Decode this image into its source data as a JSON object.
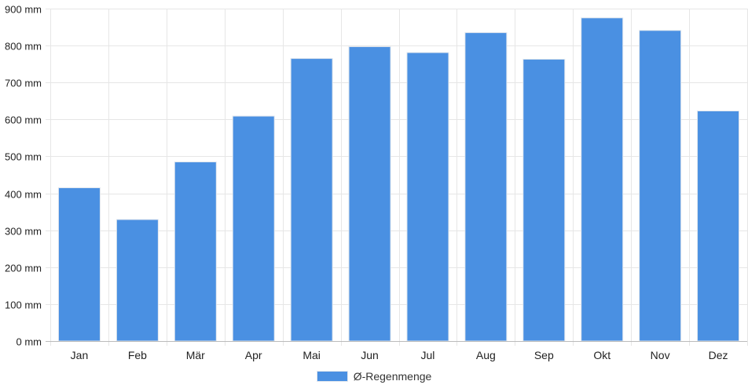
{
  "chart_data": {
    "type": "bar",
    "categories": [
      "Jan",
      "Feb",
      "Mär",
      "Apr",
      "Mai",
      "Jun",
      "Jul",
      "Aug",
      "Sep",
      "Okt",
      "Nov",
      "Dez"
    ],
    "series": [
      {
        "name": "Ø-Regenmenge",
        "values": [
          415,
          329,
          485,
          609,
          765,
          797,
          781,
          835,
          763,
          875,
          841,
          623
        ]
      }
    ],
    "ylim": [
      0,
      900
    ],
    "yticks": [
      0,
      100,
      200,
      300,
      400,
      500,
      600,
      700,
      800,
      900
    ],
    "ytick_labels": [
      "0 mm",
      "100 mm",
      "200 mm",
      "300 mm",
      "400 mm",
      "500 mm",
      "600 mm",
      "700 mm",
      "800 mm",
      "900 mm"
    ],
    "grid": true,
    "legend_position": "bottom-center",
    "colors": {
      "bar": "#4a90e2",
      "bar_border": "#e0e6ee",
      "grid": "#e6e6e6",
      "axis": "#bbbbbb"
    }
  }
}
